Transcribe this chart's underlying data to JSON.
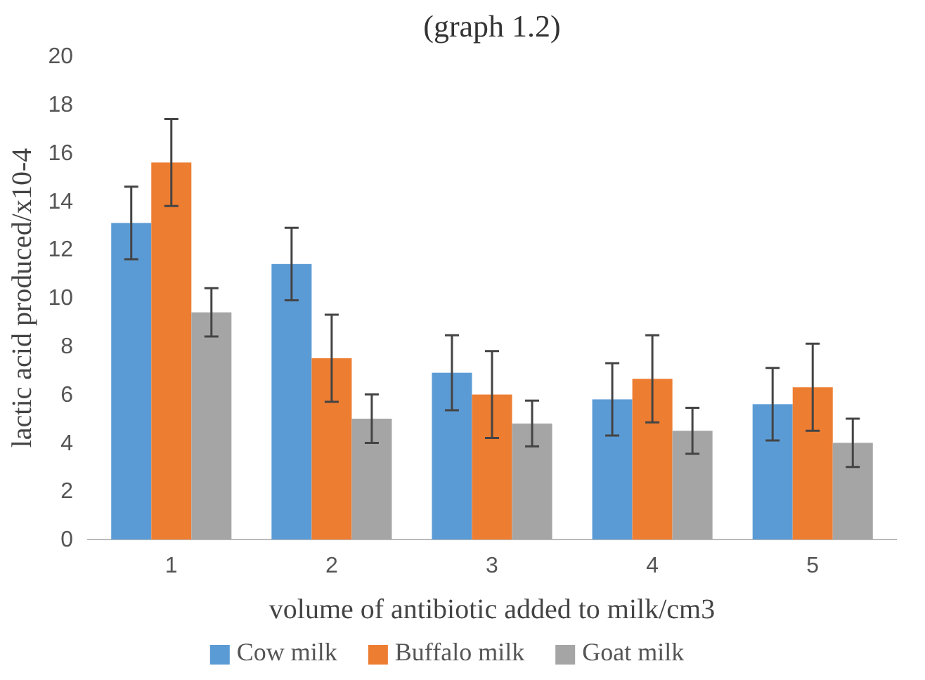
{
  "chart_data": {
    "type": "bar",
    "title": "(graph 1.2)",
    "xlabel": "volume of antibiotic added to milk/cm3",
    "ylabel": "lactic acid produced/x10-4",
    "categories": [
      "1",
      "2",
      "3",
      "4",
      "5"
    ],
    "series": [
      {
        "name": "Cow milk",
        "color": "#5b9bd5",
        "values": [
          13.1,
          11.4,
          6.9,
          5.8,
          5.6
        ],
        "errors": [
          1.5,
          1.5,
          1.55,
          1.5,
          1.5
        ]
      },
      {
        "name": "Buffalo milk",
        "color": "#ed7d31",
        "values": [
          15.6,
          7.5,
          6.0,
          6.65,
          6.3
        ],
        "errors": [
          1.8,
          1.8,
          1.8,
          1.8,
          1.8
        ]
      },
      {
        "name": "Goat milk",
        "color": "#a5a5a5",
        "values": [
          9.4,
          5.0,
          4.8,
          4.5,
          4.0
        ],
        "errors": [
          1.0,
          1.0,
          0.95,
          0.95,
          1.0
        ]
      }
    ],
    "ylim": [
      0,
      20
    ],
    "yticks": [
      0,
      2,
      4,
      6,
      8,
      10,
      12,
      14,
      16,
      18,
      20
    ],
    "legend": "bottom"
  }
}
